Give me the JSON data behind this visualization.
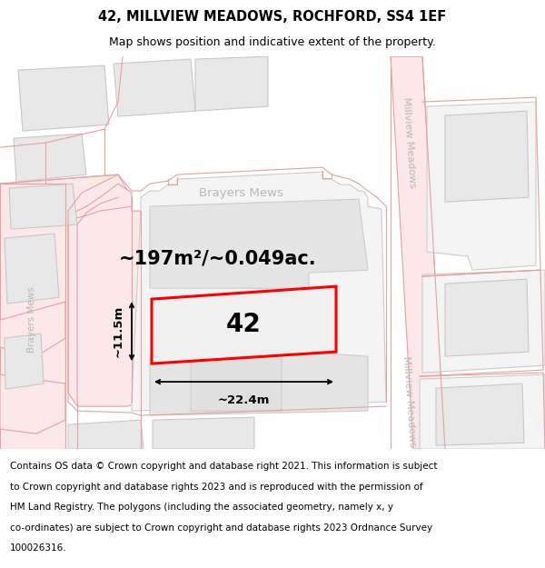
{
  "title_line1": "42, MILLVIEW MEADOWS, ROCHFORD, SS4 1EF",
  "title_line2": "Map shows position and indicative extent of the property.",
  "area_text": "~197m²/~0.049ac.",
  "plot_number": "42",
  "width_label": "~22.4m",
  "height_label": "~11.5m",
  "footer_lines": [
    "Contains OS data © Crown copyright and database right 2021. This information is subject",
    "to Crown copyright and database rights 2023 and is reproduced with the permission of",
    "HM Land Registry. The polygons (including the associated geometry, namely x, y",
    "co-ordinates) are subject to Crown copyright and database rights 2023 Ordnance Survey",
    "100026316."
  ],
  "bg_color": "#ffffff",
  "map_bg": "#ffffff",
  "road_line_color": "#e8a0a0",
  "building_fill": "#e8e8e8",
  "building_edge": "#c8c8c8",
  "cadastral_edge": "#cccccc",
  "plot_stroke": "#ff0000",
  "plot_fill": "#f0f0f0",
  "road_label_color": "#b8b8b8",
  "dim_color": "#000000",
  "title_fontsize": 10.5,
  "subtitle_fontsize": 9,
  "area_fontsize": 15,
  "plot_num_fontsize": 20,
  "dim_fontsize": 9.5,
  "footer_fontsize": 7.5
}
